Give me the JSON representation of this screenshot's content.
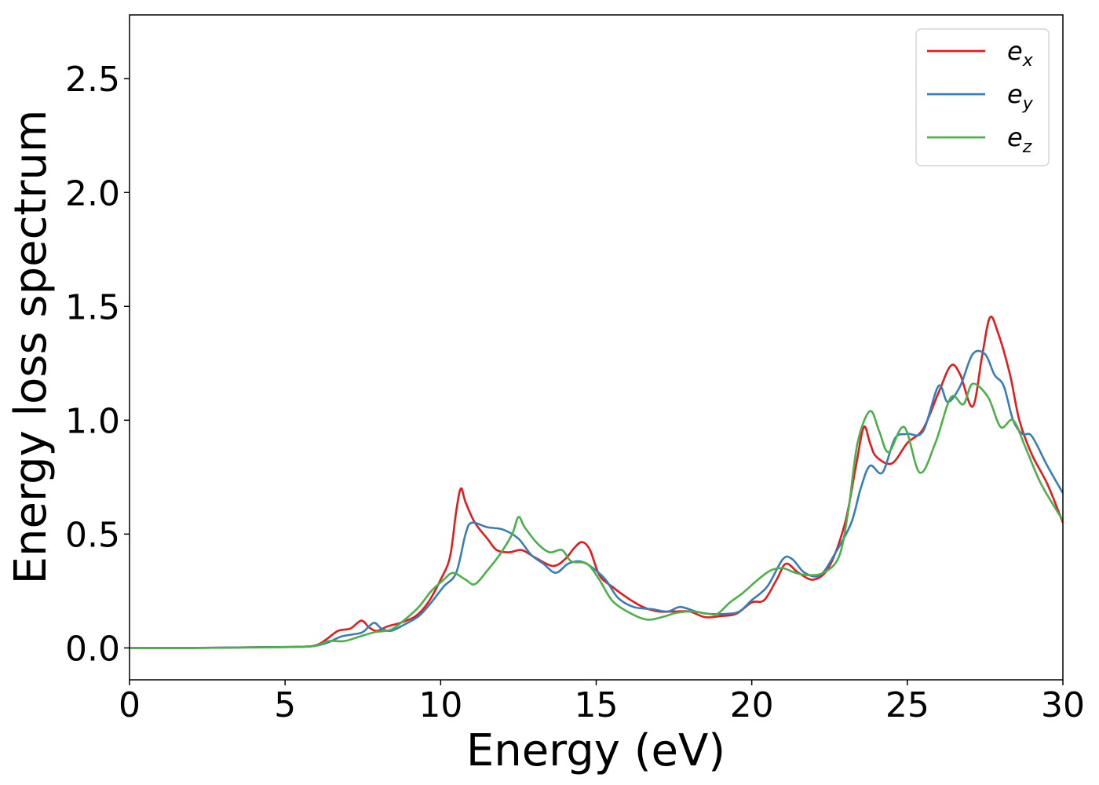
{
  "chart_data": {
    "type": "line",
    "xlabel": "Energy (eV)",
    "ylabel": "Energy loss spectrum",
    "xlim": [
      0,
      30
    ],
    "ylim": [
      -0.14,
      2.78
    ],
    "xticks": [
      0,
      5,
      10,
      15,
      20,
      25,
      30
    ],
    "xtick_labels": [
      "0",
      "5",
      "10",
      "15",
      "20",
      "25",
      "30"
    ],
    "yticks": [
      0,
      0.5,
      1.0,
      1.5,
      2.0,
      2.5
    ],
    "ytick_labels": [
      "0.0",
      "0.5",
      "1.0",
      "1.5",
      "2.0",
      "2.5"
    ],
    "grid": false,
    "legend_position": "top-right",
    "series": [
      {
        "name": "e",
        "subscript": "x",
        "color": "#e41a1c",
        "points": [
          [
            0,
            0
          ],
          [
            2,
            0
          ],
          [
            4,
            0.003
          ],
          [
            5.5,
            0.005
          ],
          [
            6,
            0.012
          ],
          [
            6.3,
            0.035
          ],
          [
            6.7,
            0.075
          ],
          [
            7.1,
            0.085
          ],
          [
            7.45,
            0.12
          ],
          [
            7.7,
            0.09
          ],
          [
            7.95,
            0.075
          ],
          [
            8.3,
            0.095
          ],
          [
            8.7,
            0.11
          ],
          [
            9.2,
            0.14
          ],
          [
            9.6,
            0.2
          ],
          [
            10.0,
            0.3
          ],
          [
            10.3,
            0.4
          ],
          [
            10.5,
            0.6
          ],
          [
            10.65,
            0.7
          ],
          [
            10.8,
            0.64
          ],
          [
            11.1,
            0.55
          ],
          [
            11.5,
            0.48
          ],
          [
            11.8,
            0.43
          ],
          [
            12.2,
            0.42
          ],
          [
            12.6,
            0.43
          ],
          [
            13.0,
            0.4
          ],
          [
            13.6,
            0.36
          ],
          [
            14.0,
            0.39
          ],
          [
            14.3,
            0.44
          ],
          [
            14.55,
            0.465
          ],
          [
            14.8,
            0.43
          ],
          [
            15.1,
            0.32
          ],
          [
            15.5,
            0.27
          ],
          [
            16.0,
            0.22
          ],
          [
            16.5,
            0.18
          ],
          [
            17.0,
            0.16
          ],
          [
            17.5,
            0.16
          ],
          [
            18.0,
            0.16
          ],
          [
            18.5,
            0.135
          ],
          [
            19.0,
            0.14
          ],
          [
            19.5,
            0.15
          ],
          [
            20.0,
            0.2
          ],
          [
            20.4,
            0.21
          ],
          [
            20.8,
            0.3
          ],
          [
            21.1,
            0.37
          ],
          [
            21.5,
            0.33
          ],
          [
            22.0,
            0.3
          ],
          [
            22.5,
            0.36
          ],
          [
            23.0,
            0.55
          ],
          [
            23.35,
            0.8
          ],
          [
            23.6,
            0.97
          ],
          [
            23.8,
            0.9
          ],
          [
            24.0,
            0.84
          ],
          [
            24.5,
            0.81
          ],
          [
            25.0,
            0.9
          ],
          [
            25.5,
            0.96
          ],
          [
            26.0,
            1.12
          ],
          [
            26.4,
            1.24
          ],
          [
            26.7,
            1.2
          ],
          [
            27.1,
            1.06
          ],
          [
            27.4,
            1.28
          ],
          [
            27.65,
            1.45
          ],
          [
            27.9,
            1.39
          ],
          [
            28.3,
            1.2
          ],
          [
            28.6,
            1.0
          ],
          [
            29.0,
            0.85
          ],
          [
            29.5,
            0.72
          ],
          [
            30.0,
            0.55
          ]
        ]
      },
      {
        "name": "e",
        "subscript": "y",
        "color": "#377eb8",
        "points": [
          [
            0,
            0
          ],
          [
            2,
            0
          ],
          [
            4,
            0.003
          ],
          [
            5.5,
            0.005
          ],
          [
            6,
            0.01
          ],
          [
            6.4,
            0.025
          ],
          [
            6.8,
            0.05
          ],
          [
            7.2,
            0.06
          ],
          [
            7.5,
            0.07
          ],
          [
            7.85,
            0.11
          ],
          [
            8.1,
            0.085
          ],
          [
            8.4,
            0.075
          ],
          [
            8.8,
            0.1
          ],
          [
            9.3,
            0.14
          ],
          [
            9.7,
            0.2
          ],
          [
            10.1,
            0.27
          ],
          [
            10.5,
            0.33
          ],
          [
            10.8,
            0.5
          ],
          [
            11.0,
            0.55
          ],
          [
            11.5,
            0.53
          ],
          [
            12.0,
            0.52
          ],
          [
            12.5,
            0.48
          ],
          [
            12.9,
            0.41
          ],
          [
            13.3,
            0.37
          ],
          [
            13.7,
            0.33
          ],
          [
            14.1,
            0.37
          ],
          [
            14.5,
            0.38
          ],
          [
            14.9,
            0.35
          ],
          [
            15.3,
            0.3
          ],
          [
            15.7,
            0.22
          ],
          [
            16.2,
            0.18
          ],
          [
            16.8,
            0.17
          ],
          [
            17.3,
            0.16
          ],
          [
            17.7,
            0.18
          ],
          [
            18.2,
            0.16
          ],
          [
            18.6,
            0.15
          ],
          [
            19.2,
            0.15
          ],
          [
            19.6,
            0.16
          ],
          [
            20.0,
            0.21
          ],
          [
            20.5,
            0.27
          ],
          [
            21.0,
            0.39
          ],
          [
            21.3,
            0.39
          ],
          [
            21.7,
            0.33
          ],
          [
            22.2,
            0.32
          ],
          [
            22.7,
            0.42
          ],
          [
            23.2,
            0.55
          ],
          [
            23.5,
            0.7
          ],
          [
            23.8,
            0.8
          ],
          [
            24.2,
            0.77
          ],
          [
            24.6,
            0.92
          ],
          [
            25.0,
            0.94
          ],
          [
            25.5,
            0.95
          ],
          [
            26.0,
            1.15
          ],
          [
            26.3,
            1.08
          ],
          [
            26.7,
            1.15
          ],
          [
            27.1,
            1.29
          ],
          [
            27.5,
            1.29
          ],
          [
            27.8,
            1.2
          ],
          [
            28.1,
            1.15
          ],
          [
            28.4,
            1.0
          ],
          [
            28.7,
            0.94
          ],
          [
            29.0,
            0.93
          ],
          [
            29.5,
            0.8
          ],
          [
            30.0,
            0.68
          ]
        ]
      },
      {
        "name": "e",
        "subscript": "z",
        "color": "#4daf4a",
        "points": [
          [
            0,
            0
          ],
          [
            2,
            0
          ],
          [
            4,
            0.002
          ],
          [
            5.5,
            0.005
          ],
          [
            6,
            0.01
          ],
          [
            6.4,
            0.03
          ],
          [
            6.9,
            0.03
          ],
          [
            7.4,
            0.05
          ],
          [
            7.9,
            0.07
          ],
          [
            8.4,
            0.08
          ],
          [
            8.9,
            0.13
          ],
          [
            9.3,
            0.18
          ],
          [
            9.7,
            0.25
          ],
          [
            10.1,
            0.3
          ],
          [
            10.4,
            0.33
          ],
          [
            10.8,
            0.3
          ],
          [
            11.1,
            0.28
          ],
          [
            11.5,
            0.34
          ],
          [
            11.9,
            0.41
          ],
          [
            12.3,
            0.5
          ],
          [
            12.5,
            0.575
          ],
          [
            12.7,
            0.53
          ],
          [
            13.1,
            0.46
          ],
          [
            13.5,
            0.42
          ],
          [
            13.9,
            0.43
          ],
          [
            14.2,
            0.38
          ],
          [
            14.7,
            0.37
          ],
          [
            15.1,
            0.3
          ],
          [
            15.5,
            0.21
          ],
          [
            16.0,
            0.16
          ],
          [
            16.6,
            0.125
          ],
          [
            17.1,
            0.135
          ],
          [
            17.6,
            0.155
          ],
          [
            18.1,
            0.16
          ],
          [
            18.6,
            0.15
          ],
          [
            18.9,
            0.15
          ],
          [
            19.3,
            0.2
          ],
          [
            19.7,
            0.24
          ],
          [
            20.2,
            0.3
          ],
          [
            20.6,
            0.34
          ],
          [
            21.0,
            0.35
          ],
          [
            21.4,
            0.33
          ],
          [
            21.8,
            0.32
          ],
          [
            22.3,
            0.33
          ],
          [
            22.8,
            0.4
          ],
          [
            23.1,
            0.6
          ],
          [
            23.4,
            0.9
          ],
          [
            23.8,
            1.04
          ],
          [
            24.1,
            0.95
          ],
          [
            24.4,
            0.86
          ],
          [
            24.9,
            0.97
          ],
          [
            25.4,
            0.77
          ],
          [
            25.9,
            0.9
          ],
          [
            26.4,
            1.1
          ],
          [
            26.8,
            1.07
          ],
          [
            27.1,
            1.16
          ],
          [
            27.6,
            1.1
          ],
          [
            28.0,
            0.97
          ],
          [
            28.4,
            1.0
          ],
          [
            28.8,
            0.88
          ],
          [
            29.3,
            0.72
          ],
          [
            30.0,
            0.56
          ]
        ]
      }
    ]
  }
}
